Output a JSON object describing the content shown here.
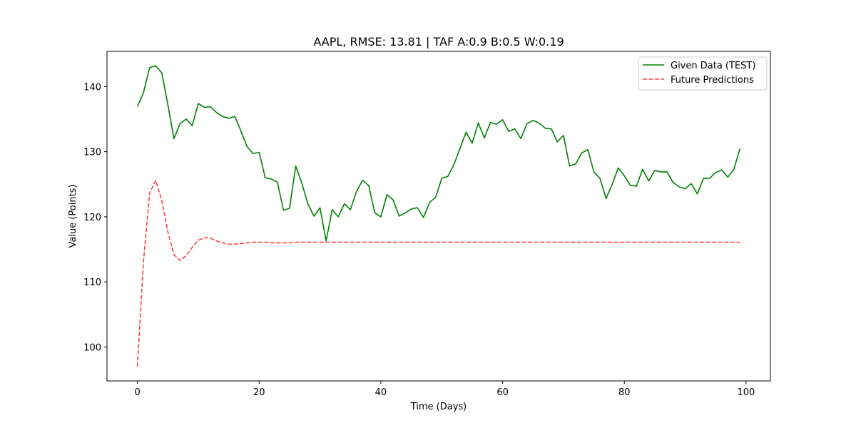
{
  "chart_data": {
    "type": "line",
    "title": "AAPL, RMSE: 13.81 | TAF A:0.9 B:0.5 W:0.19",
    "xlabel": "Time (Days)",
    "ylabel": "Value (Points)",
    "xlim": [
      -5,
      104
    ],
    "ylim": [
      94.8,
      145.4
    ],
    "xticks": [
      0,
      20,
      40,
      60,
      80,
      100
    ],
    "yticks": [
      100,
      110,
      120,
      130,
      140
    ],
    "grid": false,
    "legend_position": "top-right",
    "series": [
      {
        "name": "Given Data (TEST)",
        "color": "#008000",
        "style": "solid",
        "x": [
          0,
          1,
          2,
          3,
          4,
          5,
          6,
          7,
          8,
          9,
          10,
          11,
          12,
          13,
          14,
          15,
          16,
          17,
          18,
          19,
          20,
          21,
          22,
          23,
          24,
          25,
          26,
          27,
          28,
          29,
          30,
          31,
          32,
          33,
          34,
          35,
          36,
          37,
          38,
          39,
          40,
          41,
          42,
          43,
          44,
          45,
          46,
          47,
          48,
          49,
          50,
          51,
          52,
          53,
          54,
          55,
          56,
          57,
          58,
          59,
          60,
          61,
          62,
          63,
          64,
          65,
          66,
          67,
          68,
          69,
          70,
          71,
          72,
          73,
          74,
          75,
          76,
          77,
          78,
          79,
          80,
          81,
          82,
          83,
          84,
          85,
          86,
          87,
          88,
          89,
          90,
          91,
          92,
          93,
          94,
          95,
          96,
          97,
          98,
          99
        ],
        "values": [
          136.9,
          139.1,
          142.9,
          143.2,
          142.1,
          137.2,
          132.0,
          134.3,
          135.0,
          134.0,
          137.4,
          136.8,
          136.9,
          136.0,
          135.4,
          135.1,
          135.4,
          133.2,
          130.8,
          129.7,
          129.9,
          126.0,
          125.8,
          125.3,
          121.0,
          121.3,
          127.8,
          125.2,
          122.0,
          120.1,
          121.4,
          116.3,
          121.1,
          120.0,
          122.0,
          121.1,
          123.9,
          125.6,
          124.8,
          120.6,
          120.0,
          123.4,
          122.6,
          120.1,
          120.6,
          121.2,
          121.4,
          119.9,
          122.2,
          123.0,
          125.9,
          126.2,
          128.0,
          130.5,
          133.0,
          131.3,
          134.4,
          132.1,
          134.5,
          134.2,
          134.9,
          133.1,
          133.5,
          132.0,
          134.3,
          134.8,
          134.4,
          133.6,
          133.5,
          131.5,
          132.5,
          127.8,
          128.1,
          129.8,
          130.3,
          126.9,
          125.9,
          122.8,
          125.0,
          127.5,
          126.3,
          124.8,
          124.7,
          127.3,
          125.5,
          127.1,
          126.9,
          126.9,
          125.3,
          124.6,
          124.3,
          125.1,
          123.5,
          125.9,
          125.9,
          126.8,
          127.2,
          126.1,
          127.3,
          130.5
        ]
      },
      {
        "name": "Future Predictions",
        "color": "#ff0000",
        "style": "dashed",
        "x": [
          0,
          1,
          2,
          3,
          4,
          5,
          6,
          7,
          8,
          9,
          10,
          11,
          12,
          13,
          14,
          15,
          16,
          17,
          18,
          19,
          20,
          21,
          22,
          23,
          24,
          25,
          26,
          27,
          28,
          29,
          30,
          31,
          32,
          33,
          34,
          35,
          36,
          37,
          38,
          39,
          40,
          41,
          42,
          43,
          44,
          45,
          46,
          47,
          48,
          49,
          50,
          51,
          52,
          53,
          54,
          55,
          56,
          57,
          58,
          59,
          60,
          61,
          62,
          63,
          64,
          65,
          66,
          67,
          68,
          69,
          70,
          71,
          72,
          73,
          74,
          75,
          76,
          77,
          78,
          79,
          80,
          81,
          82,
          83,
          84,
          85,
          86,
          87,
          88,
          89,
          90,
          91,
          92,
          93,
          94,
          95,
          96,
          97,
          98,
          99
        ],
        "values": [
          97.0,
          113.2,
          123.6,
          125.6,
          122.5,
          117.7,
          114.2,
          113.3,
          114.0,
          115.3,
          116.4,
          116.8,
          116.7,
          116.3,
          116.0,
          115.8,
          115.8,
          115.9,
          116.0,
          116.1,
          116.1,
          116.1,
          116.0,
          116.0,
          116.0,
          116.0,
          116.1,
          116.1,
          116.1,
          116.1,
          116.1,
          116.1,
          116.1,
          116.1,
          116.1,
          116.1,
          116.1,
          116.1,
          116.1,
          116.1,
          116.1,
          116.1,
          116.1,
          116.1,
          116.1,
          116.1,
          116.1,
          116.1,
          116.1,
          116.1,
          116.1,
          116.1,
          116.1,
          116.1,
          116.1,
          116.1,
          116.1,
          116.1,
          116.1,
          116.1,
          116.1,
          116.1,
          116.1,
          116.1,
          116.1,
          116.1,
          116.1,
          116.1,
          116.1,
          116.1,
          116.1,
          116.1,
          116.1,
          116.1,
          116.1,
          116.1,
          116.1,
          116.1,
          116.1,
          116.1,
          116.1,
          116.1,
          116.1,
          116.1,
          116.1,
          116.1,
          116.1,
          116.1,
          116.1,
          116.1,
          116.1,
          116.1,
          116.1,
          116.1,
          116.1,
          116.1,
          116.1,
          116.1,
          116.1,
          116.1
        ]
      }
    ]
  }
}
